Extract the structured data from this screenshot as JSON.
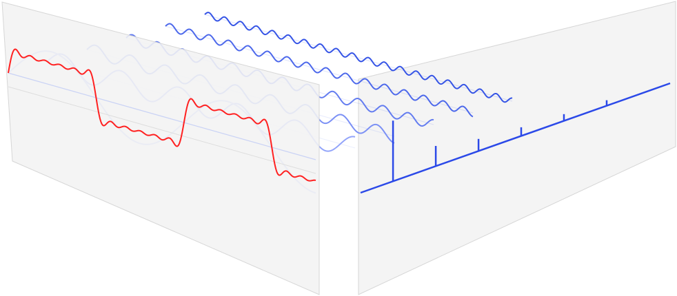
{
  "diagram": {
    "kind": "fourier-series-decomposition",
    "time_domain": {
      "signal": "square-wave",
      "approximation_harmonics": [
        1,
        3,
        5,
        7,
        9,
        11
      ],
      "signal_color": "#ff2020"
    },
    "components": {
      "harmonics": [
        1,
        3,
        5,
        7,
        9,
        11
      ],
      "relative_amplitudes": [
        1,
        0.3333,
        0.2,
        0.1429,
        0.1111,
        0.0909
      ],
      "near_color": "#a9b8ff",
      "far_color": "#3554e6"
    },
    "frequency_domain": {
      "spectrum_lines": [
        {
          "harmonic": 1,
          "magnitude": 1
        },
        {
          "harmonic": 3,
          "magnitude": 0.3333
        },
        {
          "harmonic": 5,
          "magnitude": 0.2
        },
        {
          "harmonic": 7,
          "magnitude": 0.1429
        },
        {
          "harmonic": 9,
          "magnitude": 0.1111
        },
        {
          "harmonic": 11,
          "magnitude": 0.0909
        }
      ],
      "axis_color": "#2b49e8"
    },
    "panels": {
      "fill": "#f2f2f2",
      "edge": "#d6d6d6"
    }
  }
}
